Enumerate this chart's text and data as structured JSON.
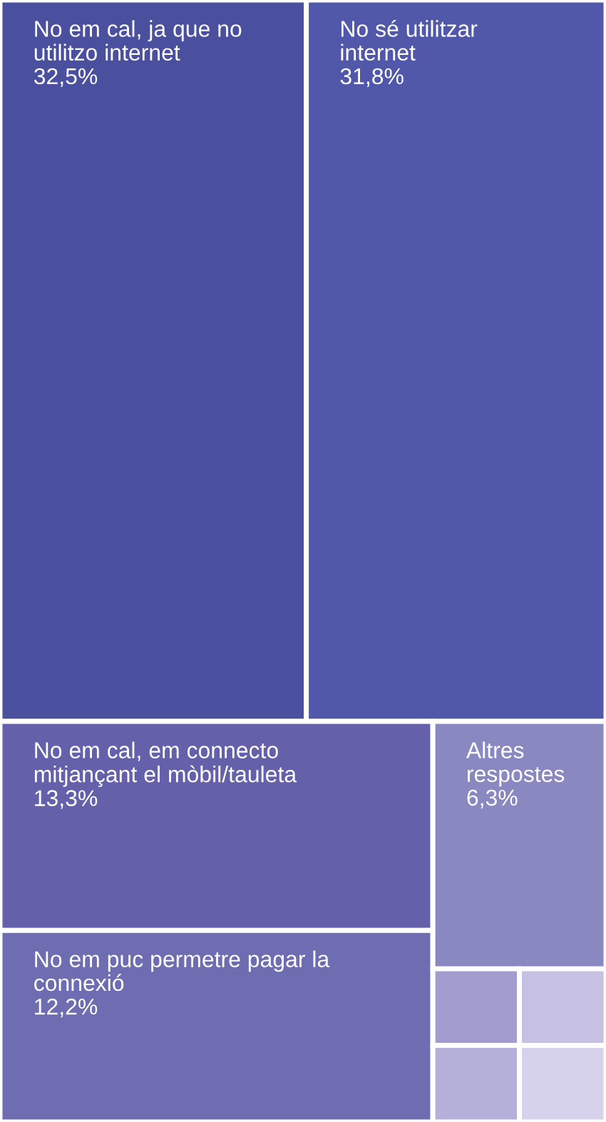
{
  "chart_data": {
    "type": "other",
    "categories": [
      "No em cal, ja que no\nutilitzo internet",
      "No sé utilitzar\ninternet",
      "No em cal, em connecto\nmitjançant el mòbil/tauleta",
      "No em puc permetre pagar la\nconnexió",
      "Altres\nrespostes",
      null,
      null,
      null,
      null
    ],
    "values": [
      32.5,
      31.8,
      13.3,
      12.2,
      6.3,
      null,
      null,
      null,
      null
    ],
    "value_labels": [
      "32,5%",
      "31,8%",
      "13,3%",
      "12,2%",
      "6,3%",
      null,
      null,
      null,
      null
    ],
    "colors": [
      "#4a4f9e",
      "#5258a9",
      "#6461aa",
      "#6f6db1",
      "#8a88c1",
      "#a29dcf",
      "#b5b0d9",
      "#c6c1e2",
      "#d6d2eb"
    ]
  }
}
